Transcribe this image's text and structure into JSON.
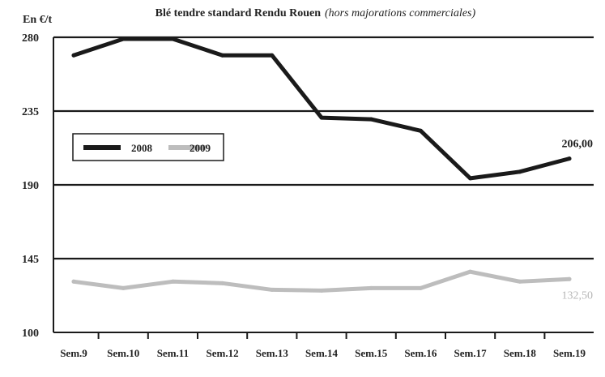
{
  "chart_data": {
    "type": "line",
    "title": "Blé tendre standard Rendu Rouen",
    "subtitle": "(hors majorations commerciales)",
    "ylabel": "En €/t",
    "xlabel": "",
    "categories": [
      "Sem.9",
      "Sem.10",
      "Sem.11",
      "Sem.12",
      "Sem.13",
      "Sem.14",
      "Sem.15",
      "Sem.16",
      "Sem.17",
      "Sem.18",
      "Sem.19"
    ],
    "ylim": [
      100,
      280
    ],
    "yticks": [
      "280",
      "235",
      "190",
      "145",
      "100"
    ],
    "grid": "horizontal",
    "legend_position": "left",
    "series": [
      {
        "name": "2008",
        "color": "#1a1a1a",
        "values": [
          269,
          279,
          279,
          269,
          269,
          231,
          230,
          223,
          194,
          198,
          206
        ],
        "end_label": "206,00"
      },
      {
        "name": "2009",
        "color": "#bdbdbd",
        "values": [
          131,
          127,
          131,
          130,
          126,
          125.5,
          127,
          127,
          137,
          131,
          132.5
        ],
        "end_label": "132,50"
      }
    ]
  }
}
